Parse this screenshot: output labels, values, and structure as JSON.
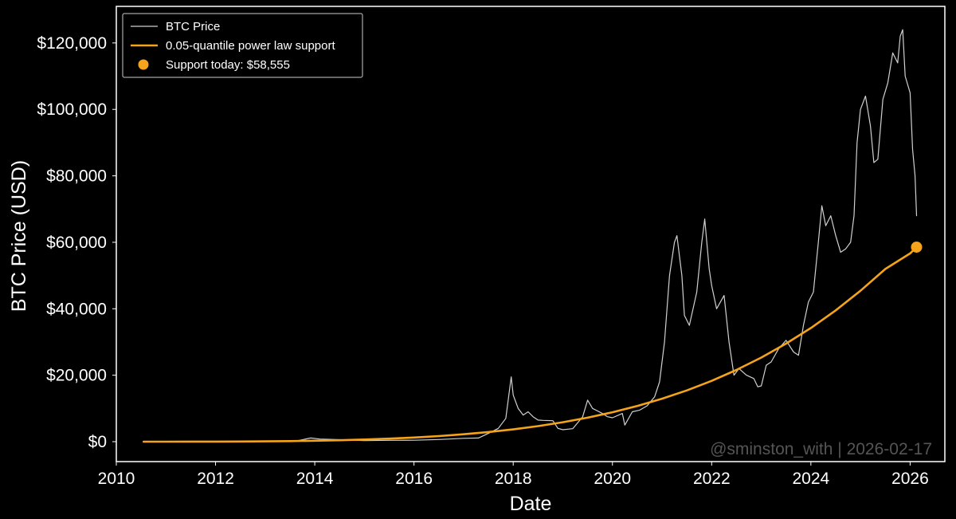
{
  "chart_data": {
    "type": "line",
    "xlabel": "Date",
    "ylabel": "BTC Price (USD)",
    "xlim": [
      2010.0,
      2026.7
    ],
    "ylim": [
      -6000,
      131000
    ],
    "x_ticks": [
      2010,
      2012,
      2014,
      2016,
      2018,
      2020,
      2022,
      2024,
      2026
    ],
    "y_ticks": [
      0,
      20000,
      40000,
      60000,
      80000,
      100000,
      120000
    ],
    "y_tick_labels": [
      "$0",
      "$20,000",
      "$40,000",
      "$60,000",
      "$80,000",
      "$100,000",
      "$120,000"
    ],
    "grid": false,
    "legend_position": "top-left",
    "series": [
      {
        "name": "BTC Price",
        "color": "#d0d0d0",
        "x": [
          2010.55,
          2011.0,
          2011.45,
          2012.0,
          2012.5,
          2013.0,
          2013.3,
          2013.6,
          2013.92,
          2014.1,
          2014.5,
          2015.0,
          2015.5,
          2016.0,
          2016.5,
          2017.0,
          2017.3,
          2017.5,
          2017.7,
          2017.85,
          2017.96,
          2018.0,
          2018.1,
          2018.2,
          2018.3,
          2018.4,
          2018.5,
          2018.6,
          2018.8,
          2018.9,
          2019.0,
          2019.2,
          2019.4,
          2019.5,
          2019.6,
          2019.8,
          2019.9,
          2020.0,
          2020.2,
          2020.25,
          2020.4,
          2020.55,
          2020.7,
          2020.85,
          2020.95,
          2021.05,
          2021.15,
          2021.25,
          2021.3,
          2021.4,
          2021.45,
          2021.55,
          2021.7,
          2021.8,
          2021.86,
          2021.95,
          2022.0,
          2022.1,
          2022.25,
          2022.35,
          2022.45,
          2022.55,
          2022.7,
          2022.85,
          2022.93,
          2023.0,
          2023.1,
          2023.2,
          2023.35,
          2023.5,
          2023.65,
          2023.75,
          2023.85,
          2023.95,
          2024.05,
          2024.15,
          2024.22,
          2024.3,
          2024.4,
          2024.5,
          2024.6,
          2024.7,
          2024.8,
          2024.87,
          2024.93,
          2025.0,
          2025.1,
          2025.2,
          2025.27,
          2025.35,
          2025.45,
          2025.55,
          2025.65,
          2025.75,
          2025.8,
          2025.85,
          2025.9,
          2026.0,
          2026.05,
          2026.1,
          2026.13
        ],
        "values": [
          0,
          1,
          10,
          6,
          8,
          15,
          100,
          120,
          1100,
          800,
          600,
          300,
          400,
          430,
          650,
          1000,
          1100,
          2500,
          4000,
          7000,
          19500,
          14000,
          10000,
          8000,
          9000,
          7500,
          6500,
          6400,
          6300,
          4000,
          3600,
          3900,
          7500,
          12500,
          10000,
          8500,
          7500,
          7200,
          8500,
          5000,
          9000,
          9500,
          10800,
          13500,
          18000,
          30000,
          50000,
          60000,
          62000,
          50000,
          38000,
          35000,
          45000,
          60000,
          67000,
          52000,
          47000,
          40000,
          44000,
          30000,
          20000,
          22000,
          20000,
          19000,
          16500,
          16800,
          23000,
          24000,
          28000,
          30500,
          27000,
          26000,
          35000,
          42000,
          45000,
          60000,
          71000,
          65000,
          68000,
          62000,
          57000,
          58000,
          60000,
          68000,
          90000,
          100000,
          104000,
          95000,
          84000,
          85000,
          103000,
          108000,
          117000,
          114000,
          122000,
          124000,
          110000,
          105000,
          88000,
          80000,
          68000
        ]
      },
      {
        "name": "0.05-quantile power law support",
        "color": "#f5a31a",
        "x": [
          2010.55,
          2011.0,
          2011.5,
          2012.0,
          2012.5,
          2013.0,
          2013.5,
          2014.0,
          2014.5,
          2015.0,
          2015.5,
          2016.0,
          2016.5,
          2017.0,
          2017.5,
          2018.0,
          2018.5,
          2019.0,
          2019.5,
          2020.0,
          2020.5,
          2021.0,
          2021.5,
          2022.0,
          2022.5,
          2023.0,
          2023.5,
          2024.0,
          2024.5,
          2025.0,
          2025.5,
          2026.0,
          2026.13
        ],
        "values": [
          0.9,
          3.5,
          11,
          27,
          56,
          104,
          177,
          285,
          434,
          636,
          901,
          1244,
          1679,
          2222,
          2891,
          3704,
          4683,
          5850,
          7230,
          8849,
          10736,
          12921,
          15436,
          18315,
          21593,
          25310,
          29505,
          34222,
          39506,
          45405,
          51971,
          56650,
          58555
        ]
      }
    ],
    "marker": {
      "label": "Support today: $58,555",
      "x": 2026.13,
      "y": 58555,
      "color": "#f5a31a"
    },
    "watermark": "@sminston_with  |  2026-02-17"
  }
}
